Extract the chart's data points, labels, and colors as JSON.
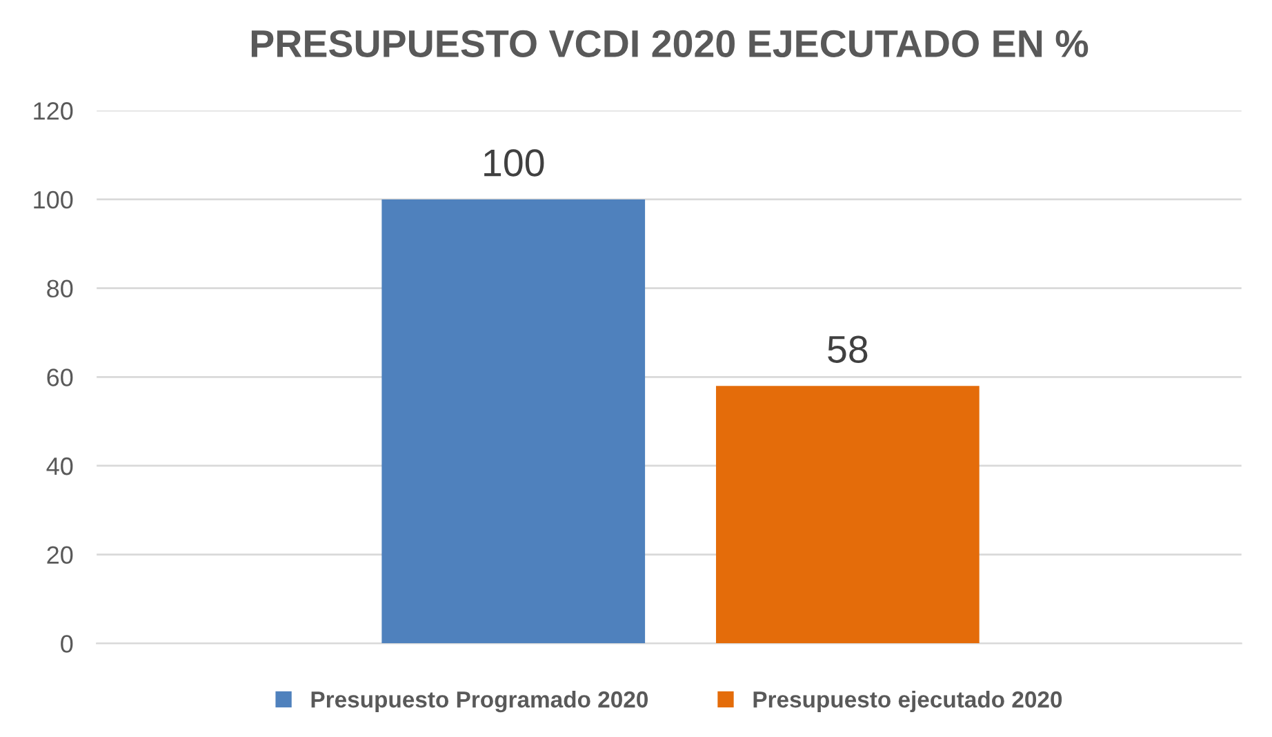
{
  "chart_data": {
    "type": "bar",
    "title": "PRESUPUESTO VCDI 2020 EJECUTADO EN %",
    "categories": [
      null
    ],
    "series": [
      {
        "name": "Presupuesto Programado 2020",
        "color": "#4f81bd",
        "values": [
          100
        ]
      },
      {
        "name": "Presupuesto ejecutado 2020",
        "color": "#e46c0a",
        "values": [
          58
        ]
      }
    ],
    "ylim": [
      0,
      120
    ],
    "yticks": [
      0,
      20,
      40,
      60,
      80,
      100,
      120
    ],
    "grid": "y",
    "legend": "bottom",
    "data_labels": true
  }
}
